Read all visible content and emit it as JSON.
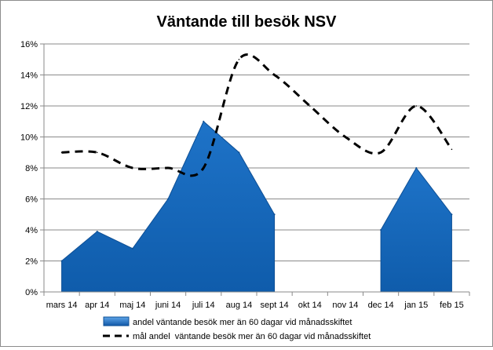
{
  "chart_data": {
    "type": "area",
    "title": "Väntande till besök NSV",
    "categories": [
      "mars 14",
      "apr 14",
      "maj 14",
      "juni 14",
      "juli 14",
      "aug 14",
      "sept 14",
      "okt 14",
      "nov 14",
      "dec 14",
      "jan 15",
      "feb 15"
    ],
    "ylim": [
      0,
      16
    ],
    "yticks": [
      "0%",
      "2%",
      "4%",
      "6%",
      "8%",
      "10%",
      "12%",
      "14%",
      "16%"
    ],
    "grid": true,
    "legend_position": "bottom",
    "series": [
      {
        "name": "andel väntande besök mer än 60 dagar vid månadsskiftet",
        "kind": "area",
        "color": "#1565c0",
        "values": [
          2,
          3.9,
          2.8,
          6,
          11,
          9,
          5,
          null,
          null,
          4,
          8,
          5
        ]
      },
      {
        "name": "mål andel  väntande besök mer än 60 dagar vid månadsskiftet",
        "kind": "dashed-line",
        "color": "#000000",
        "values": [
          9,
          9,
          8,
          8,
          8,
          15,
          14,
          12,
          10,
          9,
          12,
          9.2
        ]
      }
    ]
  }
}
